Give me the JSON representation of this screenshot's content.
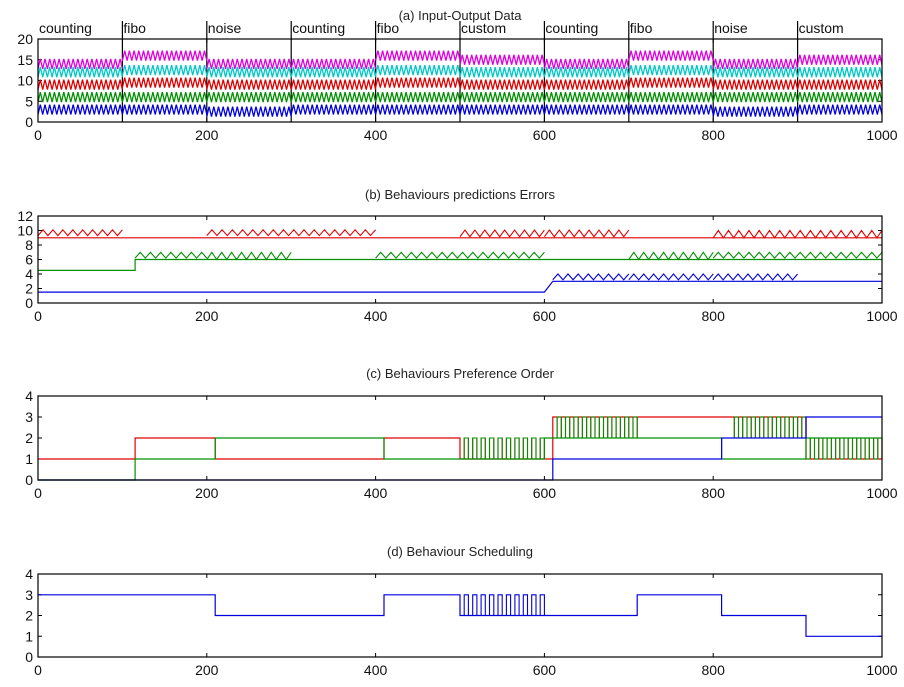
{
  "chart_data": [
    {
      "type": "line",
      "title": "(a) Input-Output Data",
      "xlim": [
        0,
        1000
      ],
      "ylim": [
        0,
        20
      ],
      "xticks": [
        "0",
        "200",
        "400",
        "600",
        "800",
        "1000"
      ],
      "yticks": [
        "0",
        "5",
        "10",
        "15",
        "20"
      ],
      "segments": [
        {
          "label": "counting",
          "start": 0
        },
        {
          "label": "fibo",
          "start": 100
        },
        {
          "label": "noise",
          "start": 200
        },
        {
          "label": "counting",
          "start": 300
        },
        {
          "label": "fibo",
          "start": 400
        },
        {
          "label": "custom",
          "start": 500
        },
        {
          "label": "counting",
          "start": 600
        },
        {
          "label": "fibo",
          "start": 700
        },
        {
          "label": "noise",
          "start": 800
        },
        {
          "label": "custom",
          "start": 900
        }
      ],
      "series": [
        {
          "color": "#e000e0",
          "values": [
            14,
            16,
            14,
            14,
            16,
            15,
            14,
            16,
            14,
            15
          ]
        },
        {
          "color": "#00c8c8",
          "values": [
            12,
            12.5,
            12,
            12,
            12.5,
            12,
            12,
            12.5,
            12,
            12
          ]
        },
        {
          "color": "#e00000",
          "values": [
            9,
            9.5,
            9,
            9,
            9.5,
            9,
            9,
            9.5,
            9,
            9
          ]
        },
        {
          "color": "#009000",
          "values": [
            6,
            6,
            6,
            6,
            6,
            6,
            6,
            6,
            6,
            6
          ]
        },
        {
          "color": "#0000e0",
          "values": [
            3,
            3,
            2.5,
            3,
            3,
            3,
            3,
            3,
            2.5,
            3
          ]
        }
      ]
    },
    {
      "type": "line",
      "title": "(b) Behaviours predictions Errors",
      "xlim": [
        0,
        1000
      ],
      "ylim": [
        0,
        12
      ],
      "xticks": [
        "0",
        "200",
        "400",
        "600",
        "800",
        "1000"
      ],
      "yticks": [
        "0",
        "2",
        "4",
        "6",
        "8",
        "10",
        "12"
      ],
      "series": [
        {
          "color": "#e00000",
          "base": [
            [
              0,
              9
            ],
            [
              1000,
              9
            ]
          ],
          "oscillate": [
            [
              0,
              100,
              9.7,
              0.8
            ],
            [
              200,
              400,
              9.7,
              0.8
            ],
            [
              500,
              600,
              9.6,
              0.9
            ],
            [
              600,
              700,
              9.6,
              0.9
            ],
            [
              800,
              1000,
              9.5,
              1.0
            ]
          ]
        },
        {
          "color": "#009000",
          "base": [
            [
              0,
              4.5
            ],
            [
              115,
              4.5
            ],
            [
              115,
              6
            ],
            [
              1000,
              6
            ]
          ],
          "oscillate": [
            [
              115,
              200,
              6.6,
              0.8
            ],
            [
              200,
              300,
              6.5,
              1.0
            ],
            [
              400,
              600,
              6.6,
              0.8
            ],
            [
              700,
              800,
              6.5,
              1.0
            ],
            [
              800,
              1000,
              6.6,
              0.8
            ]
          ]
        },
        {
          "color": "#0000e0",
          "base": [
            [
              0,
              1.5
            ],
            [
              600,
              1.5
            ],
            [
              610,
              3
            ],
            [
              1000,
              3
            ]
          ],
          "oscillate": [
            [
              610,
              700,
              3.6,
              0.8
            ],
            [
              700,
              800,
              3.6,
              0.8
            ],
            [
              800,
              900,
              3.6,
              0.8
            ]
          ]
        }
      ]
    },
    {
      "type": "line",
      "title": "(c) Behaviours Preference Order",
      "xlim": [
        0,
        1000
      ],
      "ylim": [
        0,
        4
      ],
      "xticks": [
        "0",
        "200",
        "400",
        "600",
        "800",
        "1000"
      ],
      "yticks": [
        "0",
        "1",
        "2",
        "3",
        "4"
      ],
      "series": [
        {
          "color": "#e00000",
          "steps": [
            [
              0,
              1
            ],
            [
              115,
              2
            ],
            [
              210,
              1
            ],
            [
              410,
              2
            ],
            [
              500,
              1
            ],
            [
              610,
              3
            ],
            [
              910,
              1
            ],
            [
              1000,
              1
            ]
          ],
          "oscillate": [
            [
              500,
              600,
              1,
              2
            ],
            [
              610,
              710,
              2,
              3
            ],
            [
              820,
              910,
              2,
              3
            ],
            [
              910,
              1000,
              1,
              2
            ]
          ]
        },
        {
          "color": "#009000",
          "steps": [
            [
              0,
              0
            ],
            [
              115,
              1
            ],
            [
              210,
              2
            ],
            [
              410,
              1
            ],
            [
              500,
              1
            ],
            [
              600,
              2
            ],
            [
              710,
              2
            ],
            [
              810,
              1
            ],
            [
              910,
              2
            ],
            [
              1000,
              2
            ]
          ],
          "oscillate": [
            [
              500,
              600,
              1,
              2
            ],
            [
              610,
              710,
              2,
              3
            ],
            [
              820,
              910,
              2,
              3
            ],
            [
              910,
              1000,
              1,
              2
            ]
          ]
        },
        {
          "color": "#0000e0",
          "steps": [
            [
              0,
              0
            ],
            [
              600,
              0
            ],
            [
              610,
              1
            ],
            [
              710,
              1
            ],
            [
              810,
              2
            ],
            [
              910,
              3
            ],
            [
              1000,
              3
            ]
          ]
        }
      ]
    },
    {
      "type": "line",
      "title": "(d) Behaviour Scheduling",
      "xlim": [
        0,
        1000
      ],
      "ylim": [
        0,
        4
      ],
      "xticks": [
        "0",
        "200",
        "400",
        "600",
        "800",
        "1000"
      ],
      "yticks": [
        "0",
        "1",
        "2",
        "3",
        "4"
      ],
      "series": [
        {
          "color": "#0000e0",
          "steps": [
            [
              0,
              3
            ],
            [
              210,
              2
            ],
            [
              410,
              3
            ],
            [
              500,
              2
            ],
            [
              710,
              3
            ],
            [
              810,
              2
            ],
            [
              910,
              1
            ],
            [
              1000,
              1
            ]
          ],
          "oscillate": [
            [
              500,
              600,
              2,
              3
            ]
          ]
        }
      ]
    }
  ]
}
